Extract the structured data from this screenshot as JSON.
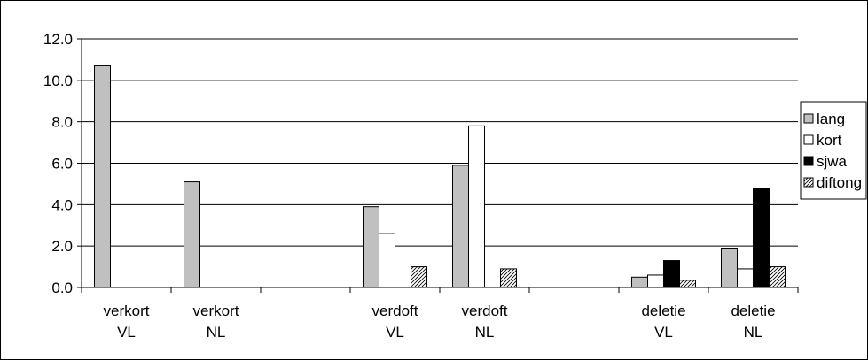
{
  "chart_data": {
    "type": "bar",
    "categories": [
      [
        "verkort",
        "VL"
      ],
      [
        "verkort",
        "NL"
      ],
      [
        "",
        ""
      ],
      [
        "verdoft",
        "VL"
      ],
      [
        "verdoft",
        "NL"
      ],
      [
        "",
        ""
      ],
      [
        "deletie",
        "VL"
      ],
      [
        "deletie",
        "NL"
      ]
    ],
    "series": [
      {
        "name": "lang",
        "values": [
          10.7,
          5.1,
          null,
          3.9,
          5.9,
          null,
          0.5,
          1.9
        ],
        "fill": "#c0c0c0",
        "pattern": "solid"
      },
      {
        "name": "kort",
        "values": [
          null,
          null,
          null,
          2.6,
          7.8,
          null,
          0.6,
          0.9
        ],
        "fill": "#ffffff",
        "pattern": "solid"
      },
      {
        "name": "sjwa",
        "values": [
          null,
          null,
          null,
          null,
          null,
          null,
          1.3,
          4.8
        ],
        "fill": "#000000",
        "pattern": "solid"
      },
      {
        "name": "diftong",
        "values": [
          null,
          null,
          null,
          1.0,
          0.9,
          null,
          0.35,
          1.0
        ],
        "fill": "#ffffff",
        "pattern": "hatch"
      }
    ],
    "ylim": [
      0,
      12
    ],
    "yticks": [
      "0.0",
      "2.0",
      "4.0",
      "6.0",
      "8.0",
      "10.0",
      "12.0"
    ],
    "ytick_values": [
      0,
      2,
      4,
      6,
      8,
      10,
      12
    ],
    "grid": true,
    "legend_position": "right",
    "title": "",
    "xlabel": "",
    "ylabel": ""
  }
}
